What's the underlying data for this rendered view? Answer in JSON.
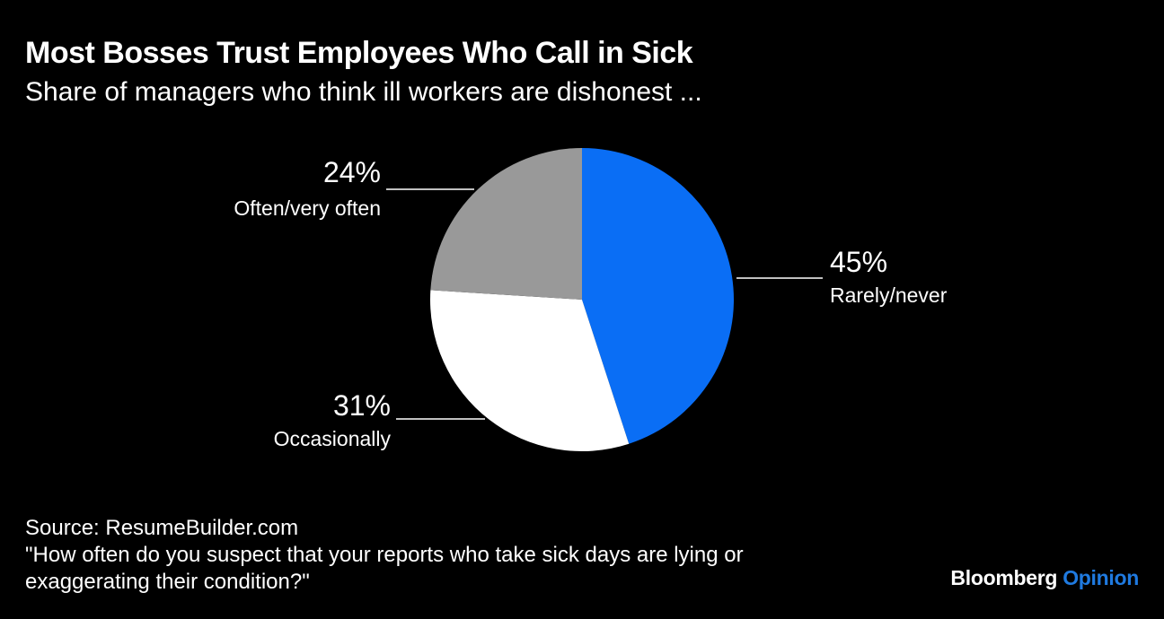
{
  "title": "Most Bosses Trust Employees Who Call in Sick",
  "subtitle": "Share of managers who think ill workers are dishonest ...",
  "chart_data": {
    "type": "pie",
    "slices": [
      {
        "label": "Rarely/never",
        "value": 45,
        "value_label": "45%",
        "color": "#0a6ef5"
      },
      {
        "label": "Occasionally",
        "value": 31,
        "value_label": "31%",
        "color": "#ffffff"
      },
      {
        "label": "Often/very often",
        "value": 24,
        "value_label": "24%",
        "color": "#999999"
      }
    ]
  },
  "footer": {
    "source": "Source: ResumeBuilder.com",
    "note_line1": "\"How often do you suspect that your reports who take sick days are lying or",
    "note_line2": "exaggerating their condition?\""
  },
  "brand": {
    "name": "Bloomberg",
    "section": "Opinion"
  }
}
